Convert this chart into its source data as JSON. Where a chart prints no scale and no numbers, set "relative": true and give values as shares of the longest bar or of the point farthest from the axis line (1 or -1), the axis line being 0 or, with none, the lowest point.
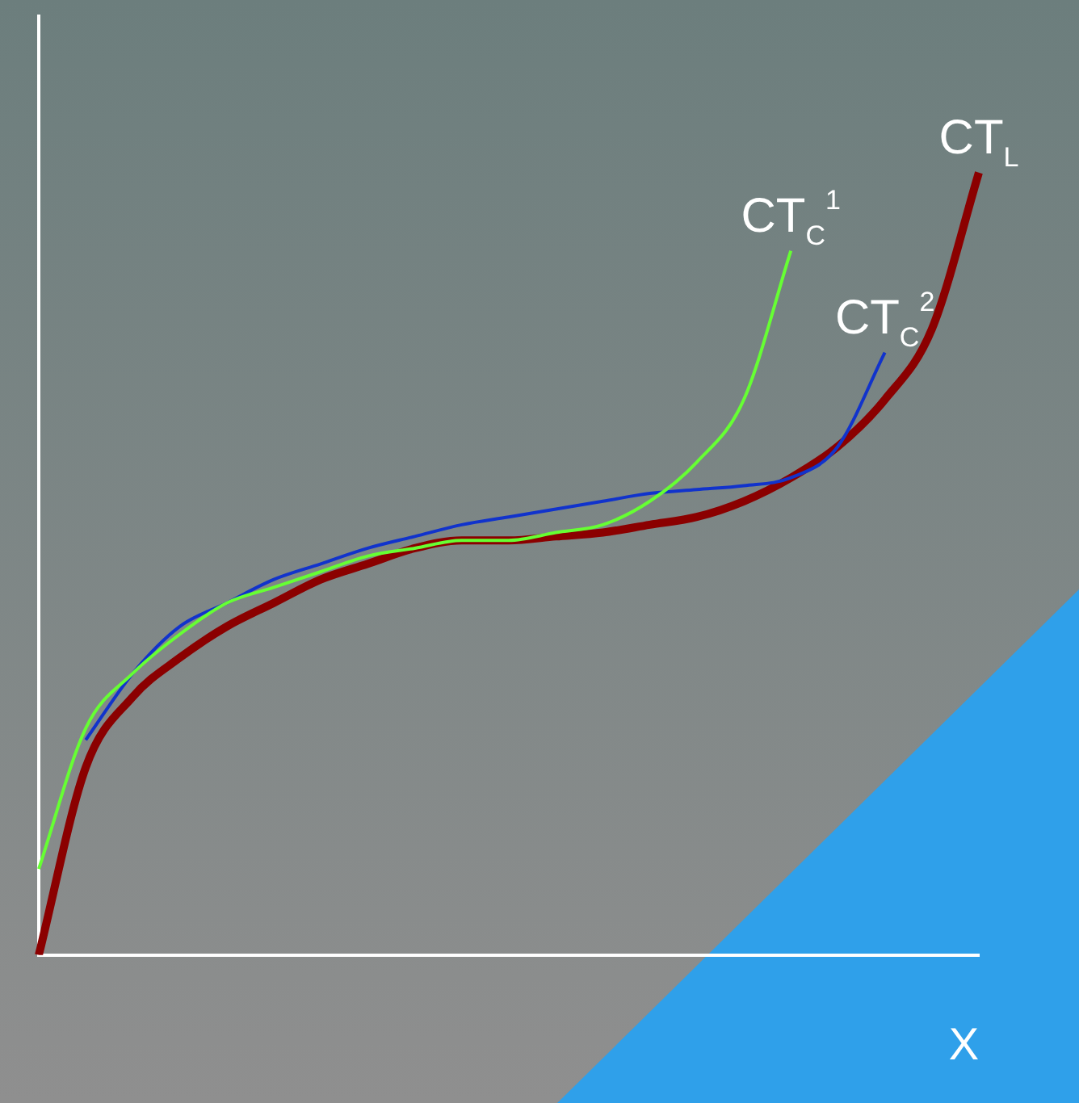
{
  "chart_data": {
    "type": "line",
    "relative": true,
    "xlabel": "X",
    "legend": false,
    "grid": false,
    "marker": "none",
    "categories": [
      null,
      null,
      null,
      null,
      null,
      null,
      null,
      null,
      null,
      null,
      null,
      null,
      null,
      null,
      null,
      null,
      null,
      null,
      null,
      null,
      null
    ],
    "series": [
      {
        "name": "CT$_{C}$$^{1}$",
        "color": "#66ff33",
        "values": [
          0.11,
          0.29,
          0.36,
          0.41,
          0.45,
          0.47,
          0.49,
          0.51,
          0.52,
          0.53,
          0.53,
          0.54,
          0.55,
          0.58,
          0.63,
          0.71,
          0.9,
          null,
          null,
          null,
          null
        ]
      },
      {
        "name": "CT$_{C}$$^{2}$",
        "color": "#1133cc",
        "values": [
          null,
          0.275,
          0.36,
          0.42,
          0.45,
          0.48,
          0.5,
          0.52,
          0.535,
          0.55,
          0.56,
          0.57,
          0.58,
          0.59,
          0.595,
          0.6,
          0.61,
          0.65,
          0.77,
          null,
          null
        ]
      },
      {
        "name": "CT$_{L}$",
        "color": "#8b0000",
        "values": [
          0,
          0.24,
          0.33,
          0.38,
          0.42,
          0.45,
          0.48,
          0.5,
          0.52,
          0.53,
          0.53,
          0.535,
          0.54,
          0.55,
          0.56,
          0.58,
          0.61,
          0.65,
          0.71,
          0.8,
          1
        ]
      }
    ]
  }
}
